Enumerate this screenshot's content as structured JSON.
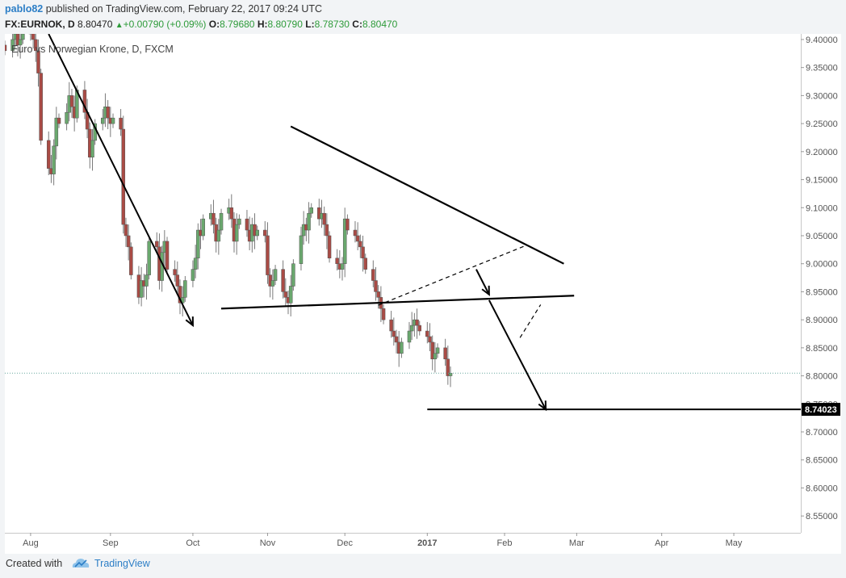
{
  "header": {
    "author": "pablo82",
    "published": "published on TradingView.com, February 22, 2017 09:24 UTC"
  },
  "quote": {
    "symbol": "FX:EURNOK, D",
    "last": "8.80470",
    "change": "+0.00790 (+0.09%)",
    "o_key": "O:",
    "o_val": "8.79680",
    "h_key": "H:",
    "h_val": "8.80790",
    "l_key": "L:",
    "l_val": "8.78730",
    "c_key": "C:",
    "c_val": "8.80470"
  },
  "footer": {
    "created": "Created with",
    "brand": "TradingView"
  },
  "colors": {
    "up": "#6aa86e",
    "down": "#a94b45",
    "line": "#000000",
    "brand": "#2c7ec6",
    "axis": "#555555",
    "grid_border": "#c8c8c8"
  },
  "chart_data": {
    "type": "candlestick",
    "title": "Euro vs Norwegian Krone, D, FXCM",
    "x_axis_labels": [
      {
        "label": "Aug",
        "date": "2016-08-01"
      },
      {
        "label": "Sep",
        "date": "2016-09-01"
      },
      {
        "label": "Oct",
        "date": "2016-10-03"
      },
      {
        "label": "Nov",
        "date": "2016-11-01"
      },
      {
        "label": "Dec",
        "date": "2016-12-01"
      },
      {
        "label": "2017",
        "date": "2017-01-02",
        "bold": true
      },
      {
        "label": "Feb",
        "date": "2017-02-01"
      },
      {
        "label": "Mar",
        "date": "2017-03-01"
      },
      {
        "label": "Apr",
        "date": "2017-04-03"
      },
      {
        "label": "May",
        "date": "2017-05-01"
      }
    ],
    "y_ticks": [
      "9.40000",
      "9.35000",
      "9.30000",
      "9.25000",
      "9.20000",
      "9.15000",
      "9.10000",
      "9.05000",
      "9.00000",
      "8.95000",
      "8.90000",
      "8.85000",
      "8.80000",
      "8.75000",
      "8.70000",
      "8.65000",
      "8.60000",
      "8.55000"
    ],
    "ylim": [
      8.52,
      9.41
    ],
    "xlim": [
      "2016-07-22",
      "2017-05-27"
    ],
    "price_marker": "8.74023",
    "last_price": 8.8047,
    "closes": [
      9.38,
      9.4,
      9.41,
      9.39,
      9.4,
      9.41,
      9.42,
      9.4,
      9.38,
      9.34,
      9.22,
      9.17,
      9.16,
      9.21,
      9.26,
      9.25,
      9.27,
      9.3,
      9.28,
      9.26,
      9.31,
      9.27,
      9.24,
      9.19,
      9.22,
      9.25,
      9.26,
      9.28,
      9.26,
      9.25,
      9.26,
      9.24,
      9.07,
      9.05,
      9.03,
      8.98,
      8.94,
      8.97,
      8.96,
      8.98,
      9.04,
      9.03,
      8.97,
      9.02,
      9.04,
      8.99,
      8.98,
      8.96,
      8.93,
      8.94,
      8.97,
      8.99,
      9.01,
      9.06,
      9.05,
      9.08,
      9.09,
      9.07,
      9.04,
      9.06,
      9.09,
      9.1,
      9.08,
      9.04,
      9.07,
      9.08,
      9.06,
      9.04,
      9.07,
      9.05,
      9.06,
      9.05,
      8.98,
      8.96,
      8.97,
      8.99,
      8.95,
      8.94,
      8.93,
      8.96,
      9.0,
      9.05,
      9.07,
      9.06,
      9.09,
      9.1,
      9.08,
      9.09,
      9.07,
      9.05,
      9.01,
      9.0,
      8.99,
      9.0,
      9.08,
      9.06,
      9.05,
      9.04,
      9.03,
      9.01,
      8.99,
      8.97,
      8.95,
      8.94,
      8.92,
      8.9,
      8.88,
      8.87,
      8.86,
      8.84,
      8.86,
      8.88,
      8.89,
      8.9,
      8.89,
      8.88,
      8.87,
      8.86,
      8.83,
      8.84,
      8.85,
      8.83,
      8.8,
      8.8047
    ],
    "annotations": [
      {
        "type": "arrow",
        "from": [
          "2016-08-08",
          9.41
        ],
        "to": [
          "2016-10-03",
          8.89
        ]
      },
      {
        "type": "trendline",
        "from": [
          "2016-11-10",
          9.245
        ],
        "to": [
          "2017-02-24",
          9.0
        ]
      },
      {
        "type": "trendline",
        "from": [
          "2016-10-14",
          8.92
        ],
        "to": [
          "2017-02-28",
          8.943
        ]
      },
      {
        "type": "dashed",
        "from": [
          "2016-12-14",
          8.926
        ],
        "to": [
          "2017-02-09",
          9.032
        ]
      },
      {
        "type": "arrow",
        "from": [
          "2017-01-21",
          8.99
        ],
        "to": [
          "2017-01-26",
          8.945
        ]
      },
      {
        "type": "arrow",
        "from": [
          "2017-01-26",
          8.935
        ],
        "to": [
          "2017-02-17",
          8.74
        ]
      },
      {
        "type": "dashed",
        "from": [
          "2017-02-07",
          8.868
        ],
        "to": [
          "2017-02-15",
          8.927
        ]
      },
      {
        "type": "hline",
        "from": [
          "2017-01-02",
          8.74023
        ],
        "to": [
          "2017-05-27",
          8.74023
        ]
      }
    ]
  }
}
